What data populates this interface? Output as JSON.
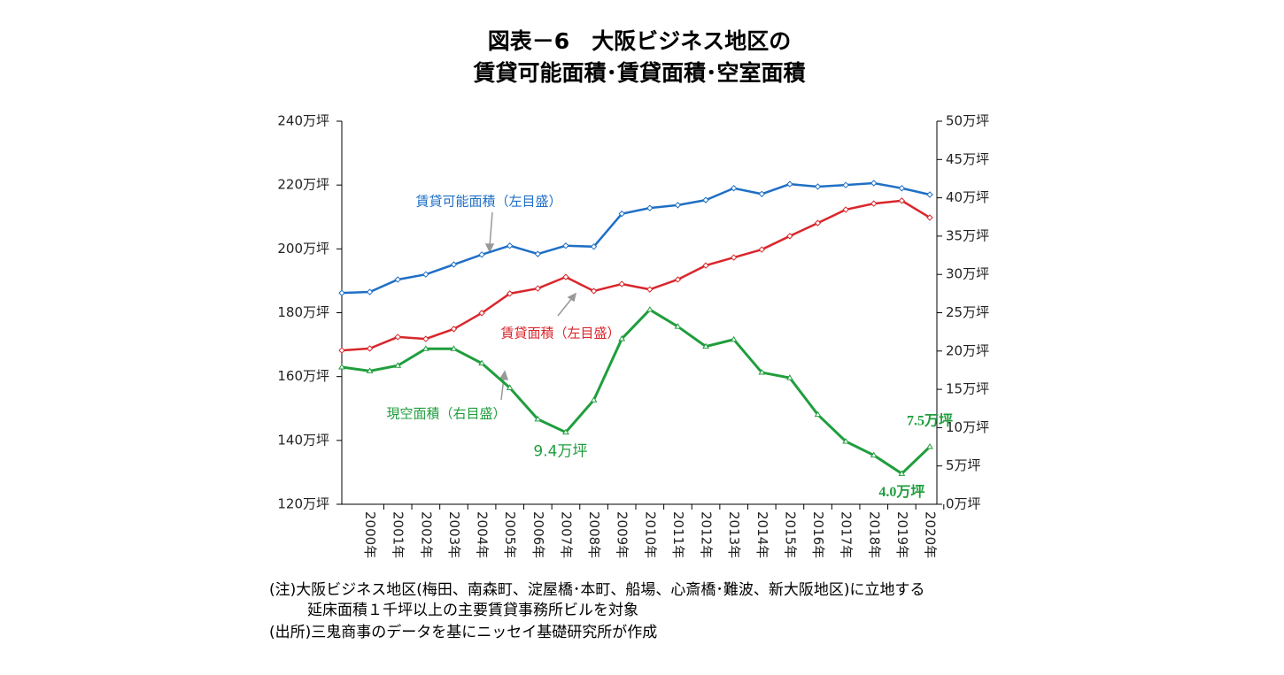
{
  "chart_data": {
    "type": "line",
    "title": [
      "図表－6　大阪ビジネス地区の",
      "賃貸可能面積･賃貸面積･空室面積"
    ],
    "categories": [
      null,
      "2000年",
      "2001年",
      "2002年",
      "2003年",
      "2004年",
      "2005年",
      "2006年",
      "2007年",
      "2008年",
      "2009年",
      "2010年",
      "2011年",
      "2012年",
      "2013年",
      "2014年",
      "2015年",
      "2016年",
      "2017年",
      "2018年",
      "2019年",
      "2020年"
    ],
    "series": [
      {
        "name": "賃貸可能面積（左目盛）",
        "color": "#1f6fc5",
        "axis": "y",
        "values": [
          186.2,
          186.5,
          190.4,
          192,
          195.1,
          198.2,
          201,
          198.4,
          201,
          200.7,
          211,
          212.8,
          213.7,
          215.3,
          219,
          217.2,
          220.3,
          219.5,
          220,
          220.6,
          219,
          217
        ]
      },
      {
        "name": "賃貸面積（左目盛）",
        "color": "#d9262b",
        "axis": "y",
        "values": [
          168.2,
          168.8,
          172.4,
          171.8,
          174.9,
          179.9,
          186,
          187.6,
          191.2,
          186.8,
          189,
          187.3,
          190.4,
          194.8,
          197.3,
          199.8,
          204,
          208.1,
          212.3,
          214.2,
          215.1,
          209.8
        ]
      },
      {
        "name": "現空面積（右目盛）",
        "color": "#1f9e3d",
        "axis": "y2",
        "values": [
          17.9,
          17.4,
          18.1,
          20.3,
          20.3,
          18.4,
          15.2,
          11.1,
          9.4,
          13.6,
          21.6,
          25.4,
          23.2,
          20.6,
          21.5,
          17.2,
          16.5,
          11.7,
          8.2,
          6.4,
          4.0,
          7.5
        ],
        "value_labels": [
          null,
          null,
          null,
          null,
          null,
          null,
          null,
          null,
          "9.4万坪",
          null,
          null,
          null,
          null,
          null,
          null,
          null,
          null,
          null,
          null,
          null,
          "4.0万坪",
          "7.5万坪"
        ]
      }
    ],
    "ylim": [
      120,
      240
    ],
    "yticks": [
      {
        "value": 120,
        "label": "120万坪"
      },
      {
        "value": 140,
        "label": "140万坪"
      },
      {
        "value": 160,
        "label": "160万坪"
      },
      {
        "value": 180,
        "label": "180万坪"
      },
      {
        "value": 200,
        "label": "200万坪"
      },
      {
        "value": 220,
        "label": "220万坪"
      },
      {
        "value": 240,
        "label": "240万坪"
      }
    ],
    "y2lim": [
      0,
      50
    ],
    "y2ticks": [
      {
        "value": 0,
        "label": "0万坪"
      },
      {
        "value": 5,
        "label": "5万坪"
      },
      {
        "value": 10,
        "label": "10万坪"
      },
      {
        "value": 15,
        "label": "15万坪"
      },
      {
        "value": 20,
        "label": "20万坪"
      },
      {
        "value": 25,
        "label": "25万坪"
      },
      {
        "value": 30,
        "label": "30万坪"
      },
      {
        "value": 35,
        "label": "35万坪"
      },
      {
        "value": 40,
        "label": "40万坪"
      },
      {
        "value": 45,
        "label": "45万坪"
      },
      {
        "value": 50,
        "label": "50万坪"
      }
    ],
    "grid": false,
    "notes": [
      "(注)大阪ビジネス地区(梅田、南森町、淀屋橋･本町、船場、心斎橋･難波、新大阪地区)に立地する",
      "延床面積１千坪以上の主要賃貸事務所ビルを対象",
      "(出所)三鬼商事のデータを基にニッセイ基礎研究所が作成"
    ]
  }
}
